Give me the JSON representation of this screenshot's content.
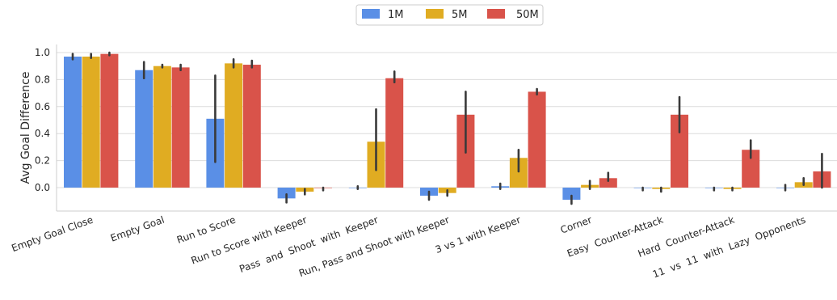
{
  "chart_data": {
    "type": "bar",
    "ylabel": "Avg Goal Difference",
    "xlabel": "",
    "ylim": [
      -0.18,
      1.06
    ],
    "yticks": [
      "0.0",
      "0.2",
      "0.4",
      "0.6",
      "0.8",
      "1.0"
    ],
    "grid": "horizontal",
    "legend_position": "top-center",
    "categories": [
      "Empty Goal Close",
      "Empty Goal",
      "Run to Score",
      "Run to Score with Keeper",
      "Pass  and  Shoot  with  Keeper",
      "Run, Pass and Shoot with Keeper",
      "3 vs 1 with Keeper",
      "Corner",
      "Easy  Counter-Attack",
      "Hard  Counter-Attack",
      "11  vs  11  with  Lazy  Opponents"
    ],
    "series": [
      {
        "name": "1M",
        "color": "#5a8fe6",
        "values": [
          0.97,
          0.87,
          0.51,
          -0.08,
          0.0,
          -0.06,
          0.01,
          -0.09,
          0.0,
          0.0,
          0.0
        ],
        "err_low": [
          0.95,
          0.81,
          0.19,
          -0.11,
          -0.01,
          -0.09,
          -0.01,
          -0.12,
          -0.02,
          -0.02,
          -0.02
        ],
        "err_high": [
          0.99,
          0.93,
          0.83,
          -0.05,
          0.01,
          -0.03,
          0.03,
          -0.06,
          0.0,
          0.0,
          0.02
        ]
      },
      {
        "name": "5M",
        "color": "#e0ac22",
        "values": [
          0.97,
          0.9,
          0.92,
          -0.03,
          0.34,
          -0.04,
          0.22,
          0.02,
          -0.01,
          -0.01,
          0.04
        ],
        "err_low": [
          0.96,
          0.89,
          0.89,
          -0.05,
          0.13,
          -0.06,
          0.12,
          -0.01,
          -0.03,
          -0.02,
          0.02
        ],
        "err_high": [
          0.99,
          0.91,
          0.95,
          -0.01,
          0.58,
          -0.02,
          0.28,
          0.05,
          0.0,
          0.0,
          0.07
        ]
      },
      {
        "name": "50M",
        "color": "#d9534a",
        "values": [
          0.99,
          0.89,
          0.91,
          0.0,
          0.81,
          0.54,
          0.71,
          0.07,
          0.54,
          0.28,
          0.12
        ],
        "err_low": [
          0.98,
          0.87,
          0.89,
          -0.02,
          0.78,
          0.26,
          0.69,
          0.05,
          0.41,
          0.22,
          0.0
        ],
        "err_high": [
          1.0,
          0.91,
          0.94,
          0.0,
          0.86,
          0.71,
          0.73,
          0.11,
          0.67,
          0.35,
          0.25
        ]
      }
    ]
  }
}
